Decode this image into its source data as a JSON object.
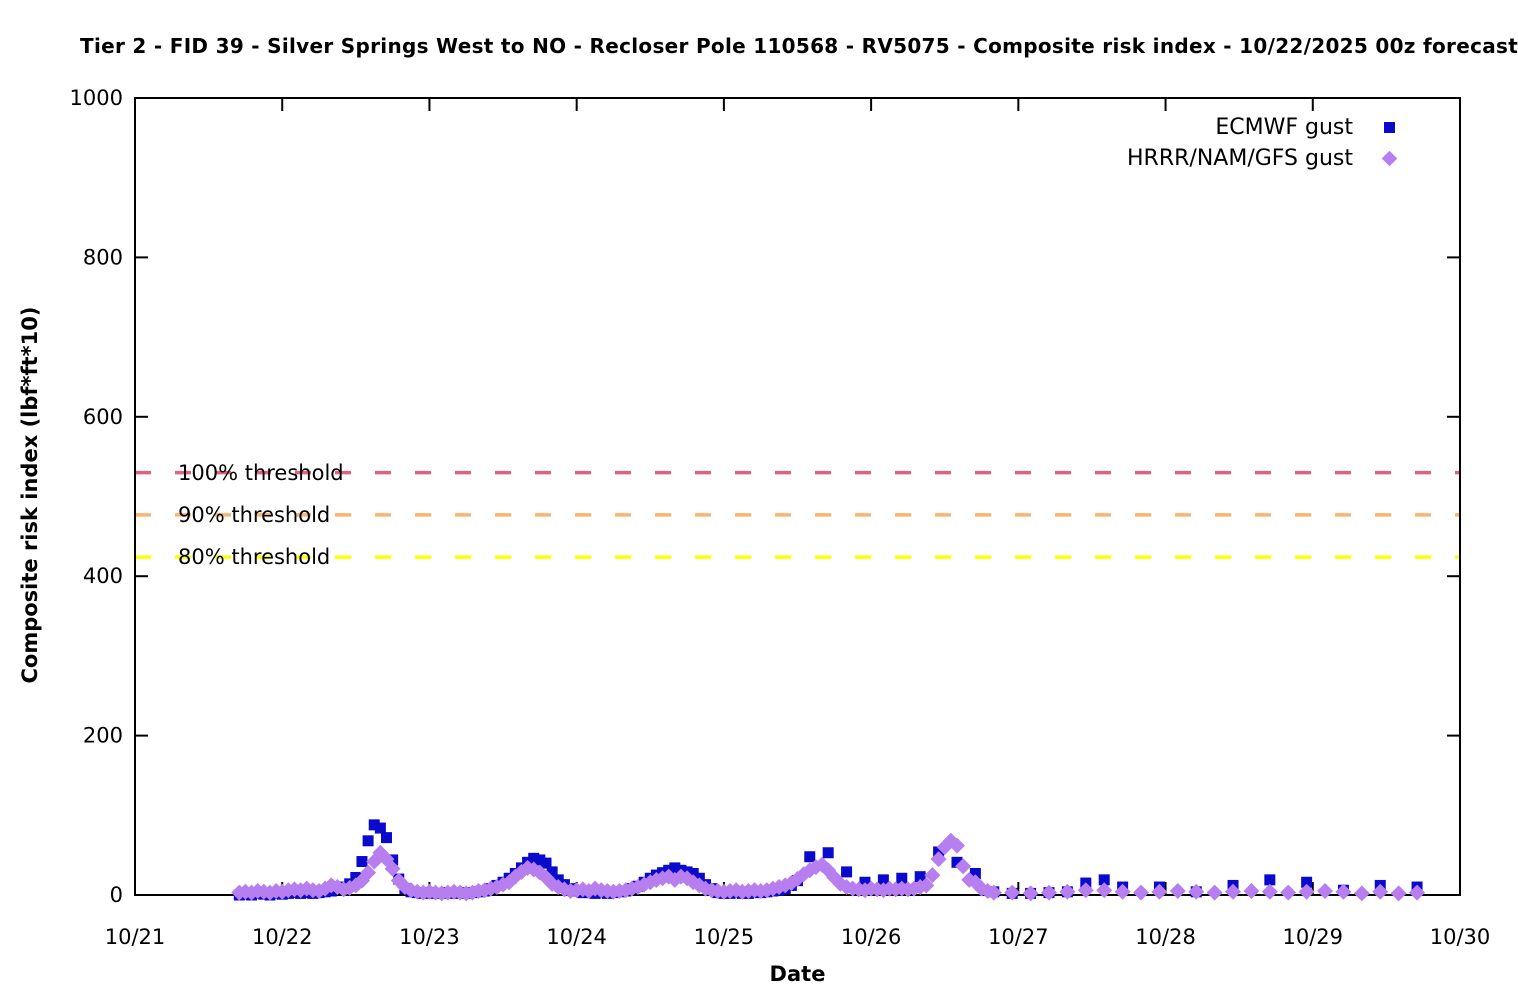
{
  "title": "Tier 2 - FID 39 - Silver Springs West to NO - Recloser Pole 110568 - RV5075 - Composite risk index - 10/22/2025 00z forecast",
  "colors": {
    "axis": "#000000",
    "background": "#ffffff",
    "ecmwf": "#0a0acd",
    "hrrr": "#b77ef0",
    "threshold_100": "#dd6480",
    "threshold_90": "#fbb36f",
    "threshold_80": "#ffff00"
  },
  "chart_data": {
    "type": "scatter",
    "title": "Tier 2 - FID 39 - Silver Springs West to NO - Recloser Pole 110568 - RV5075 - Composite risk index - 10/22/2025 00z forecast",
    "xlabel": "Date",
    "ylabel": "Composite risk index (lbf*ft*10)",
    "ylim": [
      0,
      1000
    ],
    "y_ticks": [
      0,
      200,
      400,
      600,
      800,
      1000
    ],
    "x_ticks": [
      "10/21",
      "10/22",
      "10/23",
      "10/24",
      "10/25",
      "10/26",
      "10/27",
      "10/28",
      "10/29",
      "10/30"
    ],
    "x_hours_range": [
      0,
      216
    ],
    "x_units": "hours since 10/21 00:00",
    "grid": false,
    "legend_position": "inside top-right",
    "thresholds": [
      {
        "label": "100% threshold",
        "value": 530,
        "color": "#dd6480"
      },
      {
        "label": "90% threshold",
        "value": 477,
        "color": "#fbb36f"
      },
      {
        "label": "80% threshold",
        "value": 424,
        "color": "#ffff00"
      }
    ],
    "series": [
      {
        "name": "ECMWF gust",
        "marker": "square",
        "color": "#0a0acd",
        "points": [
          [
            17,
            0
          ],
          [
            18,
            1
          ],
          [
            19,
            0
          ],
          [
            20,
            2
          ],
          [
            21,
            1
          ],
          [
            22,
            0
          ],
          [
            23,
            2
          ],
          [
            24,
            1
          ],
          [
            25,
            2
          ],
          [
            26,
            3
          ],
          [
            27,
            2
          ],
          [
            28,
            3
          ],
          [
            29,
            2
          ],
          [
            30,
            3
          ],
          [
            31,
            4
          ],
          [
            32,
            5
          ],
          [
            33,
            8
          ],
          [
            34,
            10
          ],
          [
            35,
            14
          ],
          [
            36,
            22
          ],
          [
            37,
            42
          ],
          [
            38,
            68
          ],
          [
            39,
            88
          ],
          [
            40,
            84
          ],
          [
            41,
            72
          ],
          [
            42,
            44
          ],
          [
            43,
            20
          ],
          [
            44,
            8
          ],
          [
            45,
            4
          ],
          [
            46,
            3
          ],
          [
            47,
            2
          ],
          [
            48,
            3
          ],
          [
            49,
            2
          ],
          [
            50,
            2
          ],
          [
            51,
            3
          ],
          [
            52,
            2
          ],
          [
            53,
            3
          ],
          [
            54,
            2
          ],
          [
            55,
            3
          ],
          [
            56,
            4
          ],
          [
            57,
            5
          ],
          [
            58,
            8
          ],
          [
            59,
            12
          ],
          [
            60,
            16
          ],
          [
            61,
            21
          ],
          [
            62,
            27
          ],
          [
            63,
            34
          ],
          [
            64,
            41
          ],
          [
            65,
            46
          ],
          [
            66,
            44
          ],
          [
            67,
            40
          ],
          [
            68,
            29
          ],
          [
            69,
            19
          ],
          [
            70,
            13
          ],
          [
            71,
            8
          ],
          [
            72,
            5
          ],
          [
            73,
            3
          ],
          [
            74,
            3
          ],
          [
            75,
            2
          ],
          [
            76,
            3
          ],
          [
            77,
            2
          ],
          [
            78,
            3
          ],
          [
            79,
            4
          ],
          [
            80,
            5
          ],
          [
            81,
            8
          ],
          [
            82,
            11
          ],
          [
            83,
            16
          ],
          [
            84,
            21
          ],
          [
            85,
            25
          ],
          [
            86,
            28
          ],
          [
            87,
            31
          ],
          [
            88,
            34
          ],
          [
            89,
            31
          ],
          [
            90,
            29
          ],
          [
            91,
            27
          ],
          [
            92,
            21
          ],
          [
            93,
            13
          ],
          [
            94,
            8
          ],
          [
            95,
            3
          ],
          [
            96,
            2
          ],
          [
            97,
            2
          ],
          [
            98,
            3
          ],
          [
            99,
            2
          ],
          [
            100,
            2
          ],
          [
            101,
            3
          ],
          [
            102,
            3
          ],
          [
            103,
            4
          ],
          [
            104,
            5
          ],
          [
            105,
            6
          ],
          [
            106,
            8
          ],
          [
            107,
            12
          ],
          [
            108,
            18
          ],
          [
            110,
            48
          ],
          [
            113,
            53
          ],
          [
            116,
            29
          ],
          [
            119,
            16
          ],
          [
            122,
            19
          ],
          [
            125,
            21
          ],
          [
            128,
            23
          ],
          [
            131,
            54
          ],
          [
            134,
            41
          ],
          [
            137,
            27
          ],
          [
            140,
            4
          ],
          [
            143,
            2
          ],
          [
            146,
            2
          ],
          [
            149,
            3
          ],
          [
            152,
            4
          ],
          [
            155,
            15
          ],
          [
            158,
            19
          ],
          [
            161,
            10
          ],
          [
            167,
            10
          ],
          [
            173,
            4
          ],
          [
            179,
            12
          ],
          [
            185,
            19
          ],
          [
            191,
            16
          ],
          [
            197,
            6
          ],
          [
            203,
            12
          ],
          [
            209,
            10
          ]
        ]
      },
      {
        "name": "HRRR/NAM/GFS gust",
        "marker": "diamond",
        "color": "#b77ef0",
        "points": [
          [
            17,
            3
          ],
          [
            18,
            4
          ],
          [
            19,
            3
          ],
          [
            20,
            5
          ],
          [
            21,
            4
          ],
          [
            22,
            3
          ],
          [
            23,
            5
          ],
          [
            24,
            4
          ],
          [
            25,
            6
          ],
          [
            26,
            7
          ],
          [
            27,
            6
          ],
          [
            28,
            8
          ],
          [
            29,
            6
          ],
          [
            30,
            5
          ],
          [
            31,
            8
          ],
          [
            32,
            12
          ],
          [
            33,
            10
          ],
          [
            34,
            7
          ],
          [
            35,
            9
          ],
          [
            36,
            12
          ],
          [
            37,
            18
          ],
          [
            38,
            28
          ],
          [
            39,
            42
          ],
          [
            40,
            53
          ],
          [
            41,
            45
          ],
          [
            42,
            33
          ],
          [
            43,
            18
          ],
          [
            44,
            10
          ],
          [
            45,
            6
          ],
          [
            46,
            4
          ],
          [
            47,
            3
          ],
          [
            48,
            4
          ],
          [
            49,
            3
          ],
          [
            50,
            2
          ],
          [
            51,
            3
          ],
          [
            52,
            4
          ],
          [
            53,
            3
          ],
          [
            54,
            2
          ],
          [
            55,
            3
          ],
          [
            56,
            5
          ],
          [
            57,
            6
          ],
          [
            58,
            8
          ],
          [
            59,
            10
          ],
          [
            60,
            13
          ],
          [
            61,
            16
          ],
          [
            62,
            23
          ],
          [
            63,
            29
          ],
          [
            64,
            34
          ],
          [
            65,
            32
          ],
          [
            66,
            28
          ],
          [
            67,
            22
          ],
          [
            68,
            14
          ],
          [
            69,
            10
          ],
          [
            70,
            7
          ],
          [
            71,
            5
          ],
          [
            72,
            6
          ],
          [
            73,
            7
          ],
          [
            74,
            5
          ],
          [
            75,
            8
          ],
          [
            76,
            6
          ],
          [
            77,
            5
          ],
          [
            78,
            4
          ],
          [
            79,
            5
          ],
          [
            80,
            6
          ],
          [
            81,
            8
          ],
          [
            82,
            10
          ],
          [
            83,
            13
          ],
          [
            84,
            16
          ],
          [
            85,
            19
          ],
          [
            86,
            21
          ],
          [
            87,
            23
          ],
          [
            88,
            19
          ],
          [
            89,
            23
          ],
          [
            90,
            21
          ],
          [
            91,
            16
          ],
          [
            92,
            12
          ],
          [
            93,
            8
          ],
          [
            94,
            6
          ],
          [
            95,
            5
          ],
          [
            96,
            4
          ],
          [
            97,
            5
          ],
          [
            98,
            6
          ],
          [
            99,
            4
          ],
          [
            100,
            5
          ],
          [
            101,
            6
          ],
          [
            102,
            5
          ],
          [
            103,
            6
          ],
          [
            104,
            8
          ],
          [
            105,
            10
          ],
          [
            106,
            12
          ],
          [
            107,
            15
          ],
          [
            108,
            20
          ],
          [
            109,
            26
          ],
          [
            110,
            31
          ],
          [
            111,
            35
          ],
          [
            112,
            38
          ],
          [
            113,
            31
          ],
          [
            114,
            22
          ],
          [
            115,
            14
          ],
          [
            116,
            10
          ],
          [
            117,
            8
          ],
          [
            118,
            7
          ],
          [
            119,
            6
          ],
          [
            120,
            8
          ],
          [
            121,
            7
          ],
          [
            122,
            6
          ],
          [
            123,
            8
          ],
          [
            124,
            7
          ],
          [
            125,
            8
          ],
          [
            126,
            7
          ],
          [
            127,
            8
          ],
          [
            128,
            10
          ],
          [
            129,
            12
          ],
          [
            130,
            25
          ],
          [
            131,
            45
          ],
          [
            132,
            60
          ],
          [
            133,
            68
          ],
          [
            134,
            62
          ],
          [
            135,
            36
          ],
          [
            136,
            19
          ],
          [
            137,
            16
          ],
          [
            138,
            8
          ],
          [
            139,
            5
          ],
          [
            140,
            3
          ],
          [
            143,
            3
          ],
          [
            146,
            2
          ],
          [
            149,
            3
          ],
          [
            152,
            4
          ],
          [
            155,
            6
          ],
          [
            158,
            6
          ],
          [
            161,
            4
          ],
          [
            164,
            3
          ],
          [
            167,
            4
          ],
          [
            170,
            5
          ],
          [
            173,
            4
          ],
          [
            176,
            3
          ],
          [
            179,
            4
          ],
          [
            182,
            5
          ],
          [
            185,
            4
          ],
          [
            188,
            3
          ],
          [
            191,
            4
          ],
          [
            194,
            5
          ],
          [
            197,
            4
          ],
          [
            200,
            2
          ],
          [
            203,
            4
          ],
          [
            206,
            2
          ],
          [
            209,
            3
          ]
        ]
      }
    ]
  },
  "legend": {
    "items": [
      {
        "label": "ECMWF gust"
      },
      {
        "label": "HRRR/NAM/GFS gust"
      }
    ]
  }
}
